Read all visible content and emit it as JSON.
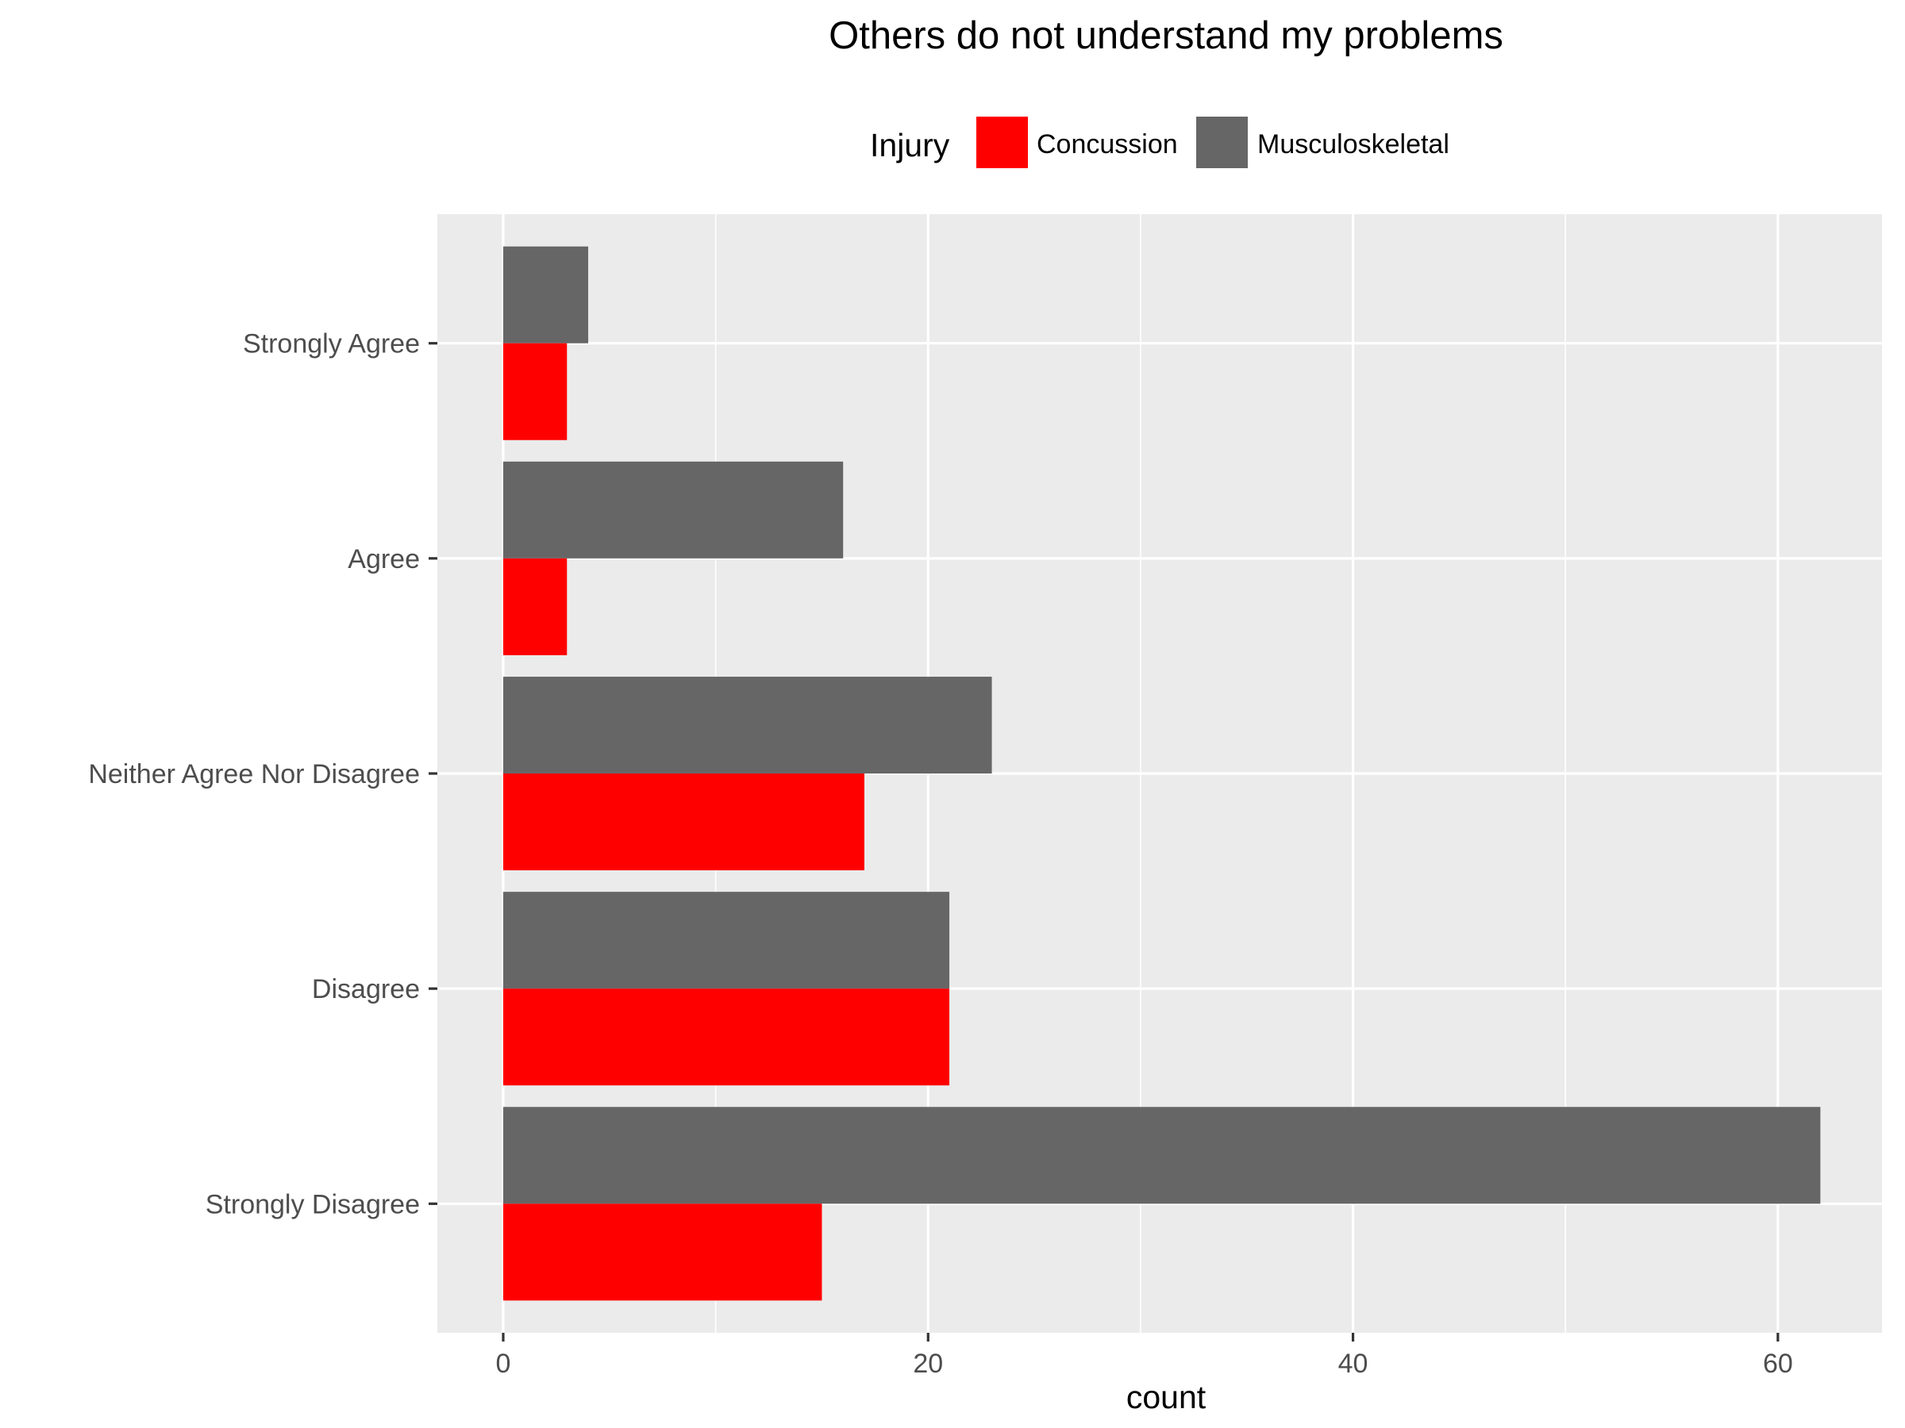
{
  "chart_data": {
    "type": "bar",
    "orientation": "horizontal",
    "title": "Others do not understand my problems",
    "xlabel": "count",
    "ylabel": "",
    "xlim": [
      -3.1,
      64.9
    ],
    "x_ticks": [
      0,
      20,
      40,
      60
    ],
    "grid": true,
    "legend": {
      "title": "Injury",
      "position": "top"
    },
    "categories": [
      "Strongly Agree",
      "Agree",
      "Neither Agree Nor Disagree",
      "Disagree",
      "Strongly Disagree"
    ],
    "series": [
      {
        "name": "Concussion",
        "color": "#ff0000",
        "values": [
          3,
          3,
          17,
          21,
          15
        ]
      },
      {
        "name": "Musculoskeletal",
        "color": "#666666",
        "values": [
          4,
          16,
          23,
          21,
          62
        ]
      }
    ]
  }
}
